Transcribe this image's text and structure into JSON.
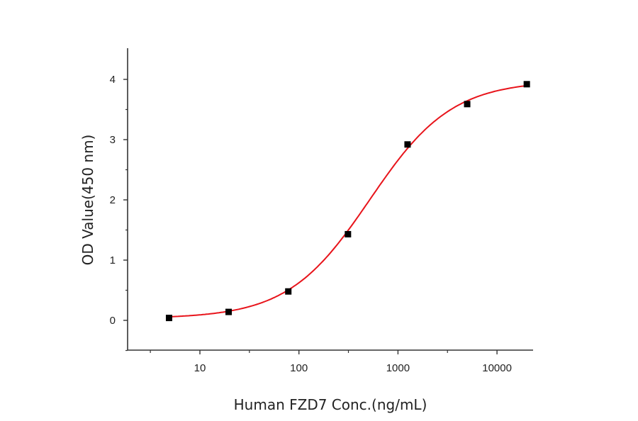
{
  "chart_data": {
    "type": "scatter",
    "title": "",
    "xlabel": "Human FZD7 Conc.(ng/mL)",
    "ylabel": "OD Value(450 nm)",
    "xscale": "log",
    "xlim": [
      2.1,
      22000
    ],
    "ylim": [
      -0.5,
      4.5
    ],
    "xticks": [
      10,
      100,
      1000,
      10000
    ],
    "xtick_labels": [
      "10",
      "100",
      "1000",
      "10000"
    ],
    "yticks": [
      0,
      1,
      2,
      3,
      4
    ],
    "ytick_labels": [
      "0",
      "1",
      "2",
      "3",
      "4"
    ],
    "grid": false,
    "legend": null,
    "series": [
      {
        "name": "Measured OD",
        "marker": "square",
        "color": "#000000",
        "x": [
          4.88,
          19.5,
          78.1,
          312.5,
          1250,
          5000,
          20000
        ],
        "y": [
          0.04,
          0.14,
          0.48,
          1.43,
          2.92,
          3.59,
          3.92
        ]
      },
      {
        "name": "4-parameter logistic fit",
        "line": true,
        "color": "#e8141b",
        "fit": {
          "bottom": 0.03,
          "top": 3.98,
          "ec50": 520,
          "hill": 1.05
        }
      }
    ]
  },
  "axes": {
    "x_title": "Human FZD7 Conc.(ng/mL)",
    "y_title": "OD Value(450 nm)"
  }
}
